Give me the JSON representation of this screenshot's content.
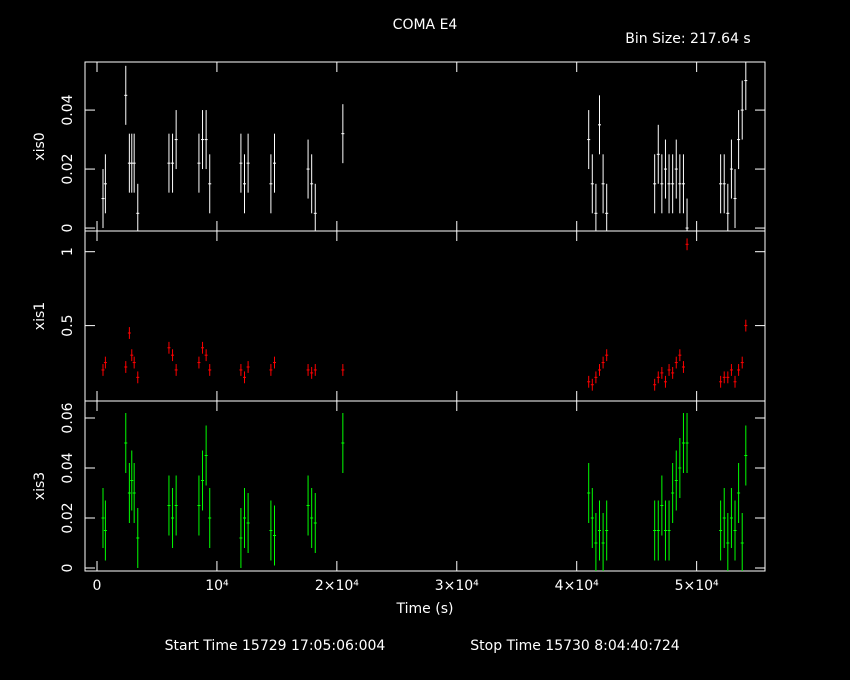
{
  "chart_data": {
    "type": "errorbar",
    "title": "COMA E4",
    "subtitle": "Bin Size: 217.64 s",
    "xlabel": "Time (s)",
    "footer": [
      "Start Time 15729 17:05:06:004",
      "Stop Time 15730  8:04:40:724"
    ],
    "xlim": [
      -1000,
      55700
    ],
    "xticks": [
      0,
      {
        "value": 10000,
        "label": "10⁴"
      },
      {
        "value": 20000,
        "label": "2×10⁴"
      },
      {
        "value": 30000,
        "label": "3×10⁴"
      },
      {
        "value": 40000,
        "label": "4×10⁴"
      },
      {
        "value": 50000,
        "label": "5×10⁴"
      }
    ],
    "x": [
      500,
      700,
      2400,
      2700,
      2900,
      3100,
      3400,
      6000,
      6300,
      6600,
      8500,
      8800,
      9100,
      9400,
      12000,
      12300,
      12600,
      14500,
      14800,
      17600,
      17900,
      18200,
      20500,
      41000,
      41300,
      41600,
      41900,
      42200,
      42500,
      46500,
      46800,
      47100,
      47400,
      47700,
      48000,
      48300,
      48600,
      48900,
      49200,
      52000,
      52300,
      52600,
      52900,
      53200,
      53500,
      53800,
      54100
    ],
    "panels": [
      {
        "ylabel": "xis0",
        "color": "#ffffff",
        "ylim": [
          -0.001,
          0.0563
        ],
        "yticks": [
          0,
          0.02,
          0.04
        ],
        "error": 0.01,
        "values": [
          0.01,
          0.015,
          0.045,
          0.022,
          0.022,
          0.022,
          0.005,
          0.022,
          0.022,
          0.03,
          0.022,
          0.03,
          0.03,
          0.015,
          0.022,
          0.015,
          0.022,
          0.015,
          0.022,
          0.02,
          0.015,
          0.005,
          0.032,
          0.03,
          0.015,
          0.005,
          0.035,
          0.015,
          0.005,
          0.015,
          0.025,
          0.015,
          0.02,
          0.015,
          0.015,
          0.02,
          0.015,
          0.015,
          0.0,
          0.015,
          0.015,
          0.005,
          0.02,
          0.01,
          0.03,
          0.04,
          0.05
        ]
      },
      {
        "ylabel": "xis1",
        "color": "#ff0000",
        "ylim": [
          -0.01,
          1.14
        ],
        "yticks": [
          0.5,
          1
        ],
        "error": 0.04,
        "values": [
          0.2,
          0.25,
          0.22,
          0.45,
          0.3,
          0.25,
          0.15,
          0.35,
          0.3,
          0.2,
          0.25,
          0.35,
          0.3,
          0.2,
          0.2,
          0.15,
          0.22,
          0.2,
          0.25,
          0.2,
          0.18,
          0.2,
          0.2,
          0.12,
          0.1,
          0.15,
          0.2,
          0.25,
          0.3,
          0.1,
          0.15,
          0.18,
          0.12,
          0.2,
          0.18,
          0.25,
          0.3,
          0.22,
          1.05,
          0.12,
          0.15,
          0.15,
          0.2,
          0.12,
          0.2,
          0.25,
          0.5
        ]
      },
      {
        "ylabel": "xis3",
        "color": "#00ff00",
        "ylim": [
          -0.0012,
          0.0668
        ],
        "yticks": [
          0,
          0.02,
          0.04,
          0.06
        ],
        "error": 0.012,
        "values": [
          0.02,
          0.015,
          0.05,
          0.03,
          0.035,
          0.03,
          0.012,
          0.025,
          0.02,
          0.025,
          0.025,
          0.035,
          0.045,
          0.02,
          0.012,
          0.02,
          0.018,
          0.015,
          0.013,
          0.025,
          0.02,
          0.018,
          0.05,
          0.03,
          0.02,
          0.01,
          0.015,
          0.01,
          0.015,
          0.015,
          0.015,
          0.025,
          0.015,
          0.015,
          0.03,
          0.035,
          0.04,
          0.05,
          0.05,
          0.015,
          0.02,
          0.01,
          0.02,
          0.015,
          0.03,
          0.01,
          0.045
        ]
      }
    ]
  }
}
